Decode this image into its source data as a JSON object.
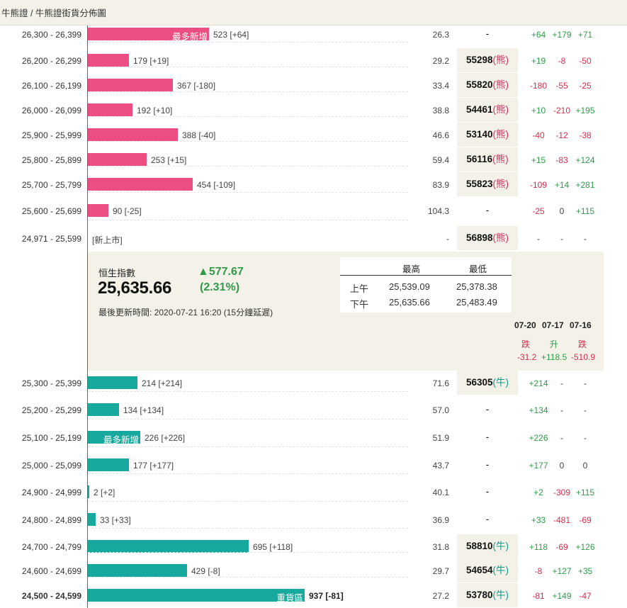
{
  "breadcrumb": "牛熊證 / 牛熊證街貨分佈圖",
  "bear_rows": [
    {
      "range": "26,300 - 26,399",
      "qty": "523 [+64]",
      "tag": "最多新增",
      "value": 523,
      "ratio": "26.3",
      "code": "-",
      "kind": "",
      "c1": "+64",
      "c2": "+179",
      "c3": "+71"
    },
    {
      "range": "26,200 - 26,299",
      "qty": "179 [+19]",
      "tag": "",
      "value": 179,
      "ratio": "29.2",
      "code": "55298",
      "kind": "(熊)",
      "c1": "+19",
      "c2": "-8",
      "c3": "-50"
    },
    {
      "range": "26,100 - 26,199",
      "qty": "367 [-180]",
      "tag": "",
      "value": 367,
      "ratio": "33.4",
      "code": "55820",
      "kind": "(熊)",
      "c1": "-180",
      "c2": "-55",
      "c3": "-25"
    },
    {
      "range": "26,000 - 26,099",
      "qty": "192 [+10]",
      "tag": "",
      "value": 192,
      "ratio": "38.8",
      "code": "54461",
      "kind": "(熊)",
      "c1": "+10",
      "c2": "-210",
      "c3": "+195"
    },
    {
      "range": "25,900 - 25,999",
      "qty": "388 [-40]",
      "tag": "",
      "value": 388,
      "ratio": "46.6",
      "code": "53140",
      "kind": "(熊)",
      "c1": "-40",
      "c2": "-12",
      "c3": "-38"
    },
    {
      "range": "25,800 - 25,899",
      "qty": "253 [+15]",
      "tag": "",
      "value": 253,
      "ratio": "59.4",
      "code": "56116",
      "kind": "(熊)",
      "c1": "+15",
      "c2": "-83",
      "c3": "+124"
    },
    {
      "range": "25,700 - 25,799",
      "qty": "454 [-109]",
      "tag": "",
      "value": 454,
      "ratio": "83.9",
      "code": "55823",
      "kind": "(熊)",
      "c1": "-109",
      "c2": "+14",
      "c3": "+281"
    },
    {
      "range": "25,600 - 25,699",
      "qty": "90 [-25]",
      "tag": "",
      "value": 90,
      "ratio": "104.3",
      "code": "-",
      "kind": "",
      "c1": "-25",
      "c2": "0",
      "c3": "+115"
    },
    {
      "range": "24,971 - 25,599",
      "qty": "[新上市]",
      "tag": "",
      "value": 0,
      "ratio": "-",
      "code": "56898",
      "kind": "(熊)",
      "c1": "-",
      "c2": "-",
      "c3": "-"
    }
  ],
  "index": {
    "name": "恒生指數",
    "value": "25,635.66",
    "change": "▲577.67",
    "pct": "(2.31%)",
    "updated": "最後更新時間: 2020-07-21 16:20 (15分鐘延遲)",
    "hl_high": "最高",
    "hl_low": "最低",
    "am_label": "上午",
    "am_high": "25,539.09",
    "am_low": "25,378.38",
    "pm_label": "下午",
    "pm_high": "25,635.66",
    "pm_low": "25,483.49"
  },
  "history": {
    "dates": [
      "07-20",
      "07-17",
      "07-16"
    ],
    "directions": [
      "跌",
      "升",
      "跌"
    ],
    "totals": [
      "-31.2",
      "+118.5",
      "-510.9"
    ]
  },
  "bull_rows": [
    {
      "range": "25,300 - 25,399",
      "qty": "214 [+214]",
      "tag": "",
      "value": 214,
      "ratio": "71.6",
      "code": "56305",
      "kind": "(牛)",
      "c1": "+214",
      "c2": "-",
      "c3": "-"
    },
    {
      "range": "25,200 - 25,299",
      "qty": "134 [+134]",
      "tag": "",
      "value": 134,
      "ratio": "57.0",
      "code": "-",
      "kind": "",
      "c1": "+134",
      "c2": "-",
      "c3": "-"
    },
    {
      "range": "25,100 - 25,199",
      "qty": "226 [+226]",
      "tag": "最多新增",
      "value": 226,
      "ratio": "51.9",
      "code": "-",
      "kind": "",
      "c1": "+226",
      "c2": "-",
      "c3": "-"
    },
    {
      "range": "25,000 - 25,099",
      "qty": "177 [+177]",
      "tag": "",
      "value": 177,
      "ratio": "43.7",
      "code": "-",
      "kind": "",
      "c1": "+177",
      "c2": "0",
      "c3": "0"
    },
    {
      "range": "24,900 - 24,999",
      "qty": "2 [+2]",
      "tag": "",
      "value": 2,
      "ratio": "40.1",
      "code": "-",
      "kind": "",
      "c1": "+2",
      "c2": "-309",
      "c3": "+115"
    },
    {
      "range": "24,800 - 24,899",
      "qty": "33 [+33]",
      "tag": "",
      "value": 33,
      "ratio": "36.9",
      "code": "-",
      "kind": "",
      "c1": "+33",
      "c2": "-481",
      "c3": "-69"
    },
    {
      "range": "24,700 - 24,799",
      "qty": "695 [+118]",
      "tag": "",
      "value": 695,
      "ratio": "31.8",
      "code": "58810",
      "kind": "(牛)",
      "c1": "+118",
      "c2": "-69",
      "c3": "+126"
    },
    {
      "range": "24,600 - 24,699",
      "qty": "429 [-8]",
      "tag": "",
      "value": 429,
      "ratio": "29.7",
      "code": "54654",
      "kind": "(牛)",
      "c1": "-8",
      "c2": "+127",
      "c3": "+35"
    },
    {
      "range": "24,500 - 24,599",
      "qty": "937 [-81]",
      "tag": "重貨區",
      "value": 937,
      "ratio": "27.2",
      "code": "53780",
      "kind": "(牛)",
      "c1": "-81",
      "c2": "+149",
      "c3": "-47",
      "bold": true
    }
  ],
  "colors": {
    "bear": "#ec4e82",
    "bull": "#17a99d",
    "up": "#2f9b4b",
    "down": "#d2304f"
  }
}
